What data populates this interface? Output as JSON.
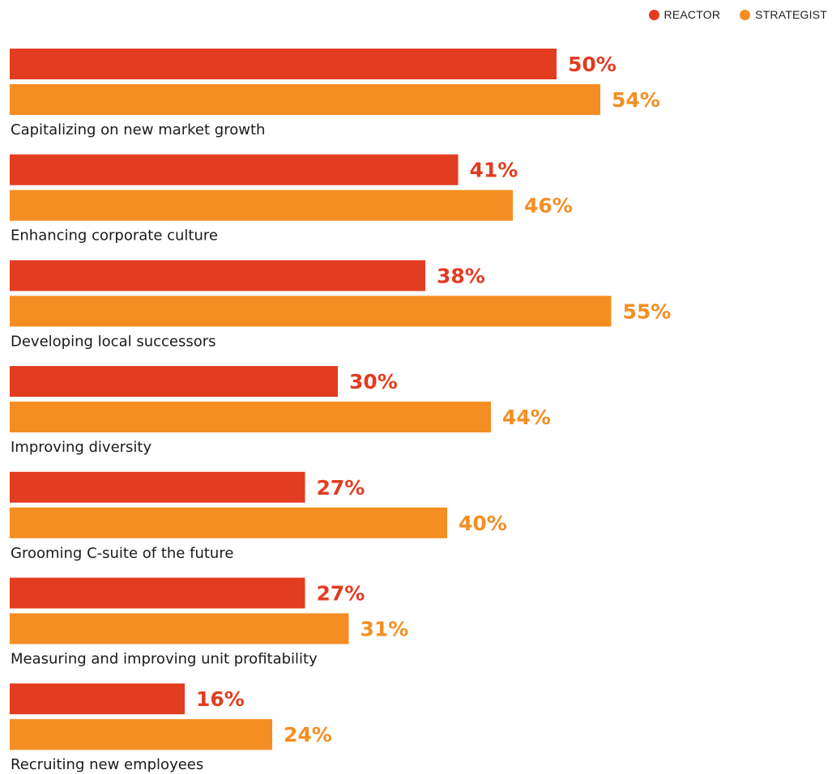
{
  "legend": {
    "reactor_label": "REACTOR",
    "strategist_label": "STRATEGIST"
  },
  "colors": {
    "reactor": "#e23c21",
    "strategist": "#f58e22"
  },
  "chart_data": {
    "type": "bar",
    "orientation": "horizontal",
    "title": "",
    "xlabel": "",
    "ylabel": "",
    "value_suffix": "%",
    "xlim": [
      0,
      77
    ],
    "grid": false,
    "legend_position": "top-right",
    "categories": [
      "Capitalizing on new market growth",
      "Enhancing corporate culture",
      "Developing local successors",
      "Improving diversity",
      "Grooming C-suite of the future",
      "Measuring and improving unit profitability",
      "Recruiting new employees"
    ],
    "series": [
      {
        "name": "REACTOR",
        "color": "#e23c21",
        "values": [
          50,
          41,
          38,
          30,
          27,
          27,
          16
        ]
      },
      {
        "name": "STRATEGIST",
        "color": "#f58e22",
        "values": [
          54,
          46,
          55,
          44,
          40,
          31,
          24
        ]
      }
    ]
  }
}
